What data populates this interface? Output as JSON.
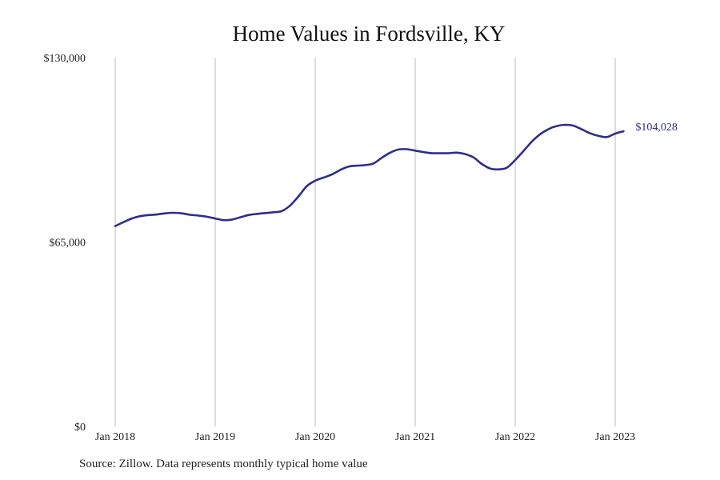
{
  "chart_data": {
    "type": "line",
    "title": "Home Values in Fordsville, KY",
    "source": "Source: Zillow. Data represents monthly typical home value",
    "y_ticks": [
      {
        "value": 0,
        "label": "$0"
      },
      {
        "value": 65000,
        "label": "$65,000"
      },
      {
        "value": 130000,
        "label": "$130,000"
      }
    ],
    "ylim": [
      0,
      130000
    ],
    "x_ticks": [
      {
        "date": "2018-01",
        "label": "Jan 2018"
      },
      {
        "date": "2019-01",
        "label": "Jan 2019"
      },
      {
        "date": "2020-01",
        "label": "Jan 2020"
      },
      {
        "date": "2021-01",
        "label": "Jan 2021"
      },
      {
        "date": "2022-01",
        "label": "Jan 2022"
      },
      {
        "date": "2023-01",
        "label": "Jan 2023"
      }
    ],
    "xlim": [
      "2018-01",
      "2023-02"
    ],
    "grid": "vertical",
    "line_color": "#2e2e8c",
    "end_label": "$104,028",
    "series": [
      {
        "x": [
          "2018-01",
          "2018-02",
          "2018-03",
          "2018-04",
          "2018-05",
          "2018-06",
          "2018-07",
          "2018-08",
          "2018-09",
          "2018-10",
          "2018-11",
          "2018-12",
          "2019-01",
          "2019-02",
          "2019-03",
          "2019-04",
          "2019-05",
          "2019-06",
          "2019-07",
          "2019-08",
          "2019-09",
          "2019-10",
          "2019-11",
          "2019-12",
          "2020-01",
          "2020-02",
          "2020-03",
          "2020-04",
          "2020-05",
          "2020-06",
          "2020-07",
          "2020-08",
          "2020-09",
          "2020-10",
          "2020-11",
          "2020-12",
          "2021-01",
          "2021-02",
          "2021-03",
          "2021-04",
          "2021-05",
          "2021-06",
          "2021-07",
          "2021-08",
          "2021-09",
          "2021-10",
          "2021-11",
          "2021-12",
          "2022-01",
          "2022-02",
          "2022-03",
          "2022-04",
          "2022-05",
          "2022-06",
          "2022-07",
          "2022-08",
          "2022-09",
          "2022-10",
          "2022-11",
          "2022-12",
          "2023-01",
          "2023-02"
        ],
        "values": [
          70600,
          72000,
          73300,
          74100,
          74500,
          74700,
          75100,
          75300,
          75100,
          74600,
          74300,
          73900,
          73300,
          72700,
          72900,
          73700,
          74500,
          74900,
          75200,
          75500,
          75900,
          77900,
          81100,
          84700,
          86600,
          87700,
          88800,
          90400,
          91600,
          91900,
          92100,
          92700,
          94700,
          96500,
          97600,
          97700,
          97200,
          96700,
          96300,
          96300,
          96300,
          96500,
          96000,
          94800,
          92500,
          90900,
          90600,
          91200,
          93900,
          97100,
          100400,
          103000,
          104800,
          105900,
          106300,
          106000,
          104700,
          103300,
          102400,
          102000,
          103200,
          104028
        ]
      }
    ]
  }
}
